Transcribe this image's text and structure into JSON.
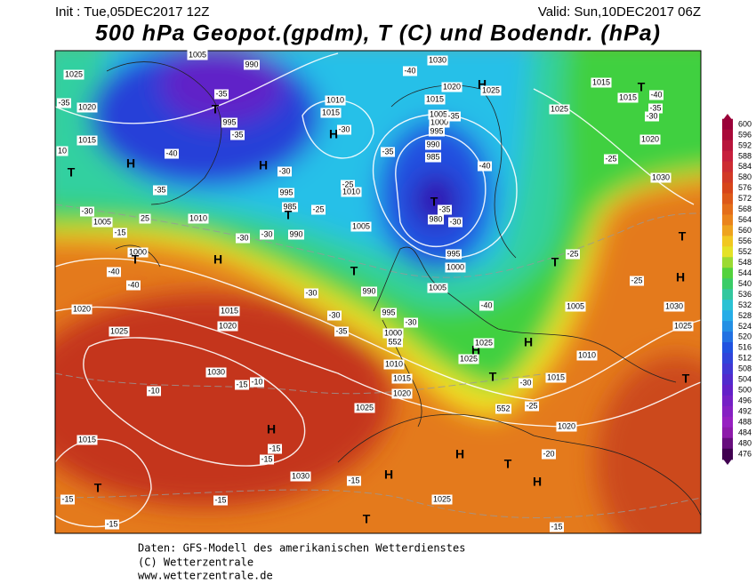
{
  "header": {
    "init": "Init : Tue,05DEC2017 12Z",
    "valid": "Valid: Sun,10DEC2017 06Z",
    "title": "500 hPa Geopot.(gpdm), T (C) und Bodendr. (hPa)"
  },
  "colorbar": {
    "labels": [
      600,
      596,
      592,
      588,
      584,
      580,
      576,
      572,
      568,
      564,
      560,
      556,
      552,
      548,
      544,
      540,
      536,
      532,
      528,
      524,
      520,
      516,
      512,
      508,
      504,
      500,
      496,
      492,
      488,
      484,
      480,
      476
    ]
  },
  "map_labels": [
    "1005",
    "990",
    "1025",
    "-35",
    "1020",
    "-35",
    "T",
    "995",
    "-35",
    "1015",
    "H",
    "-40",
    "10",
    "T",
    "H",
    "-30",
    "-35",
    "995",
    "985",
    "T",
    "-30",
    "1005",
    "25",
    "-15",
    "1010",
    "990",
    "-30",
    "-30",
    "1000",
    "T",
    "H",
    "-40",
    "-40",
    "1020",
    "1015",
    "1020",
    "1025",
    "T",
    "-30",
    "990",
    "995",
    "-30",
    "-35",
    "1000",
    "552",
    "-30",
    "1010",
    "1015",
    "1020",
    "1025",
    "1030",
    "-10",
    "-15",
    "-10",
    "H",
    "-15",
    "-15",
    "1030",
    "-15",
    "H",
    "H",
    "T",
    "H",
    "T",
    "-15",
    "-15",
    "1015",
    "T",
    "-15",
    "-15",
    "1025",
    "-20",
    "1020",
    "-25",
    "552",
    "-30",
    "T",
    "1015",
    "H",
    "1025",
    "1025",
    "H",
    "1010",
    "T",
    "1025",
    "1030",
    "H",
    "-25",
    "T",
    "-25",
    "T",
    "1005",
    "-40",
    "1005",
    "1000",
    "995",
    "980",
    "-35",
    "-30",
    "T",
    "985",
    "990",
    "995",
    "1000",
    "1005",
    "-35",
    "-40",
    "-35",
    "H",
    "-30",
    "1015",
    "1010",
    "-25",
    "1010",
    "1005",
    "-25",
    "-40",
    "1030",
    "1020",
    "1015",
    "H",
    "1025",
    "1025",
    "1015",
    "1015",
    "T",
    "-40",
    "-35",
    "-30",
    "1020",
    "-25",
    "1030"
  ],
  "footer": [
    "Daten: GFS-Modell des amerikanischen Wetterdienstes",
    "(C) Wetterzentrale",
    "www.wetterzentrale.de"
  ]
}
